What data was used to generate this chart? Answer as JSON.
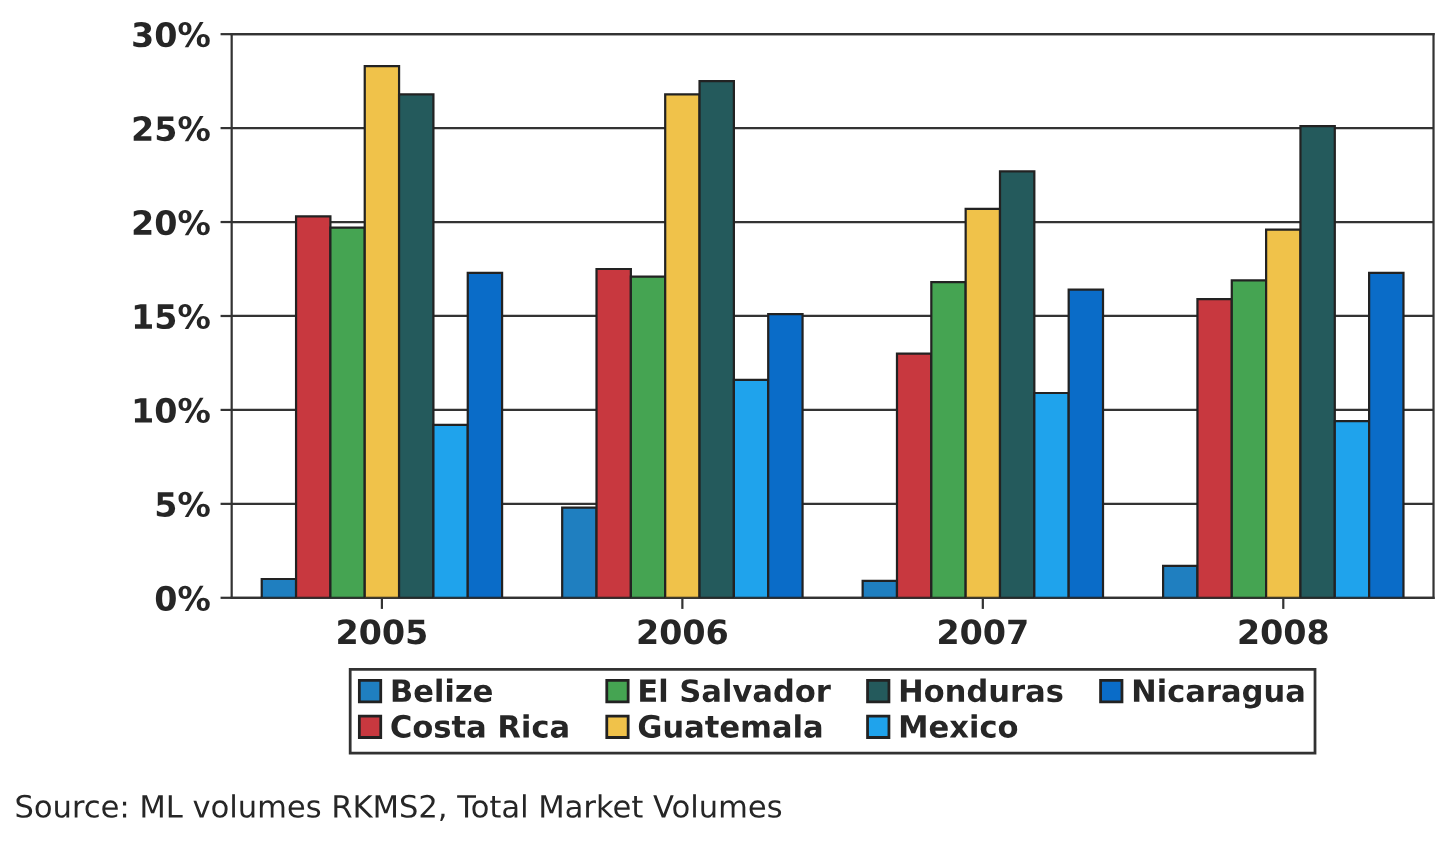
{
  "chart_data": {
    "type": "bar",
    "categories": [
      "2005",
      "2006",
      "2007",
      "2008"
    ],
    "series": [
      {
        "name": "Belize",
        "color": "#1f7fc0",
        "values": [
          1.0,
          4.8,
          0.9,
          1.7
        ]
      },
      {
        "name": "Costa Rica",
        "color": "#c8383f",
        "values": [
          20.3,
          17.5,
          13.0,
          15.9
        ]
      },
      {
        "name": "El Salvador",
        "color": "#45a452",
        "values": [
          19.7,
          17.1,
          16.8,
          16.9
        ]
      },
      {
        "name": "Guatemala",
        "color": "#f0c24a",
        "values": [
          28.3,
          26.8,
          20.7,
          19.6
        ]
      },
      {
        "name": "Honduras",
        "color": "#245a5c",
        "values": [
          26.8,
          27.5,
          22.7,
          25.1
        ]
      },
      {
        "name": "Mexico",
        "color": "#1fa3ec",
        "values": [
          9.2,
          11.6,
          10.9,
          9.4
        ]
      },
      {
        "name": "Nicaragua",
        "color": "#0a6cc8",
        "values": [
          17.3,
          15.1,
          16.4,
          17.3
        ]
      }
    ],
    "ylim": [
      0,
      30
    ],
    "yticks": [
      {
        "value": 0,
        "label": "0%"
      },
      {
        "value": 5,
        "label": "5%"
      },
      {
        "value": 10,
        "label": "10%"
      },
      {
        "value": 15,
        "label": "15%"
      },
      {
        "value": 20,
        "label": "20%"
      },
      {
        "value": 25,
        "label": "25%"
      },
      {
        "value": 30,
        "label": "30%"
      }
    ],
    "grid": "y",
    "legend": "bottom",
    "annotations": [
      "Source: ML volumes RKMS2, Total Market Volumes"
    ]
  }
}
